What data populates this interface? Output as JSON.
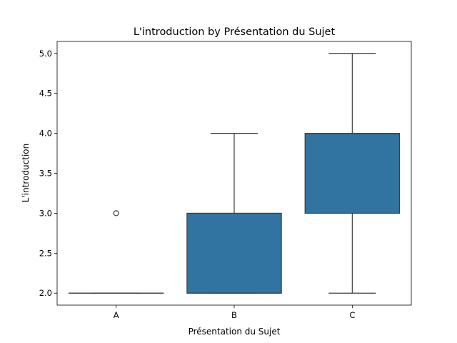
{
  "chart_data": {
    "type": "box",
    "title": "L'introduction by Présentation du Sujet",
    "xlabel": "Présentation du Sujet",
    "ylabel": "L'introduction",
    "categories": [
      "A",
      "B",
      "C"
    ],
    "boxes": [
      {
        "category": "A",
        "whisker_low": 2.0,
        "q1": 2.0,
        "median": 2.0,
        "q3": 2.0,
        "whisker_high": 2.0,
        "outliers": [
          3.0
        ]
      },
      {
        "category": "B",
        "whisker_low": 2.0,
        "q1": 2.0,
        "median": 2.0,
        "q3": 3.0,
        "whisker_high": 4.0,
        "outliers": []
      },
      {
        "category": "C",
        "whisker_low": 2.0,
        "q1": 3.0,
        "median": 4.0,
        "q3": 4.0,
        "whisker_high": 5.0,
        "outliers": []
      }
    ],
    "y_ticks": [
      "2.0",
      "2.5",
      "3.0",
      "3.5",
      "4.0",
      "4.5",
      "5.0"
    ],
    "ylim": [
      1.85,
      5.15
    ],
    "grid": false,
    "legend": "none",
    "box_color": "#3274a1",
    "line_color": "#3d3d3d"
  }
}
